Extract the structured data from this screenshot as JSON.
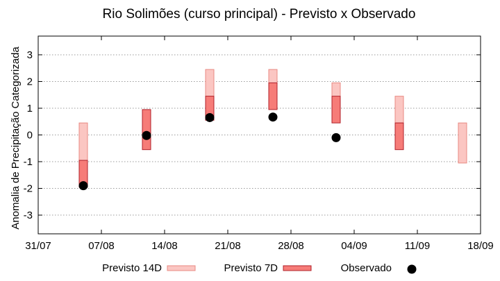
{
  "chart_data": {
    "type": "bar",
    "title": "Rio Solimões (curso principal) - Previsto x Observado",
    "xlabel": "",
    "ylabel": "Anomalia de Precipitação Categorizada",
    "ylim": [
      -3.7,
      3.7
    ],
    "xlim": [
      "31/07",
      "18/09"
    ],
    "yticks": [
      "-3",
      "-2",
      "-1",
      "0",
      "1",
      "2",
      "3"
    ],
    "xticks": [
      "31/07",
      "07/08",
      "14/08",
      "21/08",
      "28/08",
      "04/09",
      "11/09",
      "18/09"
    ],
    "grid": true,
    "legend_position": "bottom",
    "colors": {
      "forecast_14d_fill": "#fbc6c2",
      "forecast_14d_stroke": "#e88a83",
      "forecast_7d_fill": "#f67c78",
      "forecast_7d_stroke": "#b0202a",
      "observed": "#000000"
    },
    "series": [
      {
        "name": "Previsto 14D",
        "kind": "range",
        "points": [
          {
            "date": "05/08",
            "low": -1.0,
            "high": 0.4
          },
          {
            "date": "19/08",
            "low": 1.5,
            "high": 2.4
          },
          {
            "date": "26/08",
            "low": 1.5,
            "high": 2.4
          },
          {
            "date": "02/09",
            "low": 1.0,
            "high": 1.9
          },
          {
            "date": "09/09",
            "low": 0.5,
            "high": 1.4
          },
          {
            "date": "16/09",
            "low": -1.0,
            "high": 0.4
          }
        ]
      },
      {
        "name": "Previsto 7D",
        "kind": "range",
        "points": [
          {
            "date": "05/08",
            "low": -1.9,
            "high": -1.0
          },
          {
            "date": "12/08",
            "low": -0.5,
            "high": 0.9
          },
          {
            "date": "19/08",
            "low": 0.6,
            "high": 1.4
          },
          {
            "date": "26/08",
            "low": 1.0,
            "high": 1.9
          },
          {
            "date": "02/09",
            "low": 0.5,
            "high": 1.4
          },
          {
            "date": "09/09",
            "low": -0.5,
            "high": 0.4
          }
        ]
      },
      {
        "name": "Observado",
        "kind": "point",
        "points": [
          {
            "date": "05/08",
            "y": -1.9
          },
          {
            "date": "12/08",
            "y": -0.02
          },
          {
            "date": "19/08",
            "y": 0.65
          },
          {
            "date": "26/08",
            "y": 0.67
          },
          {
            "date": "02/09",
            "y": -0.1
          }
        ]
      }
    ]
  }
}
